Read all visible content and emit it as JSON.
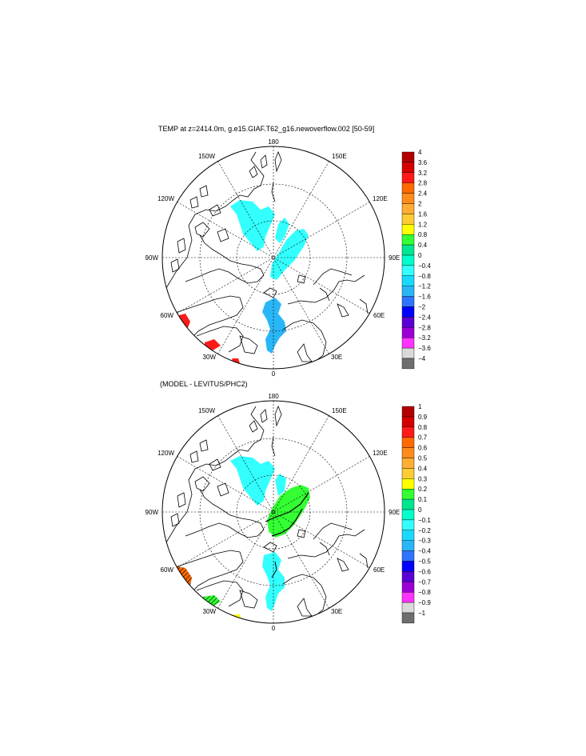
{
  "panels": [
    {
      "title": "TEMP at z=2414.0m, g.e15.GIAF.T62_g16.newoverflow.002 [50-59]",
      "lon_labels": {
        "top": "180",
        "bottom": "0",
        "left": "90W",
        "right": "90E",
        "ul1": "150W",
        "ul2": "120W",
        "ur1": "150E",
        "ur2": "120E",
        "ll1": "60W",
        "ll2": "30W",
        "lr1": "60E",
        "lr2": "30E"
      },
      "colorbar": {
        "labels": [
          "4",
          "3.6",
          "3.2",
          "2.8",
          "2.4",
          "2",
          "1.6",
          "1.2",
          "0.8",
          "0.4",
          "0",
          "−0.4",
          "−0.8",
          "−1.2",
          "−1.6",
          "−2",
          "−2.4",
          "−2.8",
          "−3.2",
          "−3.6",
          "−4"
        ],
        "colors": [
          "#b30000",
          "#d40000",
          "#ff1a1a",
          "#ff6a00",
          "#ff8c1a",
          "#ffad33",
          "#ffcc33",
          "#ffff00",
          "#33ff33",
          "#00e690",
          "#00ffcc",
          "#33ffff",
          "#1ad9ff",
          "#29b6f6",
          "#2f74ff",
          "#0000ff",
          "#5a00d6",
          "#9a00d6",
          "#ff33ff",
          "#d9d9d9",
          "#6e6e6e"
        ]
      }
    },
    {
      "title": "(MODEL - LEVITUS/PHC2)",
      "lon_labels": {
        "top": "180",
        "bottom": "0",
        "left": "90W",
        "right": "90E",
        "ul1": "150W",
        "ul2": "120W",
        "ur1": "150E",
        "ur2": "120E",
        "ll1": "60W",
        "ll2": "30W",
        "lr1": "60E",
        "lr2": "30E"
      },
      "colorbar": {
        "labels": [
          "1",
          "0.9",
          "0.8",
          "0.7",
          "0.6",
          "0.5",
          "0.4",
          "0.3",
          "0.2",
          "0.1",
          "0",
          "−0.1",
          "−0.2",
          "−0.3",
          "−0.4",
          "−0.5",
          "−0.6",
          "−0.7",
          "−0.8",
          "−0.9",
          "−1"
        ],
        "colors": [
          "#b30000",
          "#d40000",
          "#ff1a1a",
          "#ff6a00",
          "#ff8c1a",
          "#ffad33",
          "#ffcc33",
          "#ffff00",
          "#33ff33",
          "#00e690",
          "#00ffcc",
          "#33ffff",
          "#1ad9ff",
          "#29b6f6",
          "#2f74ff",
          "#0000ff",
          "#5a00d6",
          "#9a00d6",
          "#ff33ff",
          "#d9d9d9",
          "#6e6e6e"
        ]
      }
    }
  ]
}
